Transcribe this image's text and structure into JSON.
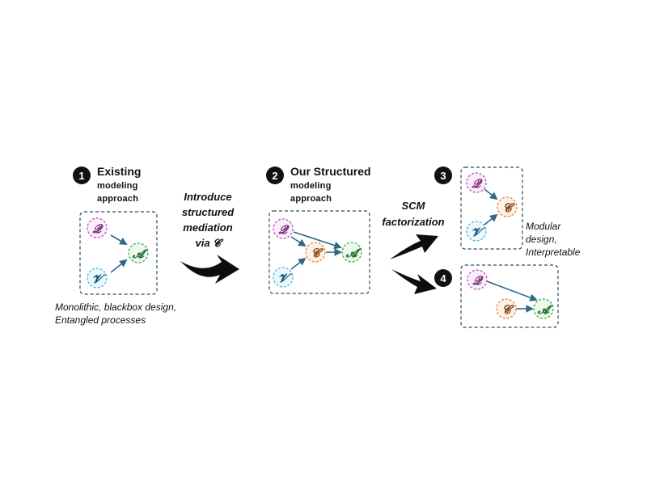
{
  "steps": [
    {
      "number": "1",
      "title_lines": [
        "Existing",
        "modeling",
        "approach"
      ]
    },
    {
      "number": "2",
      "title_lines": [
        "Our Structured",
        "modeling",
        "approach"
      ]
    },
    {
      "number": "3"
    },
    {
      "number": "4"
    }
  ],
  "transition_1_lines": [
    "Introduce",
    "structured",
    "mediation",
    "via 𝓒"
  ],
  "transition_2_lines": [
    "SCM",
    "factorization"
  ],
  "nodes": {
    "q": "𝓠",
    "v": "𝓥",
    "c": "𝓒",
    "a": "𝓐"
  },
  "captions": {
    "panel1": [
      "Monolithic, blackbox design,",
      "Entangled processes"
    ],
    "panel3": [
      "Modular",
      "design,",
      "Interpretable"
    ]
  },
  "colors": {
    "q_border": "#c24fbf",
    "q_fill": "#fbeefb",
    "v_border": "#49b7e3",
    "v_fill": "#ecf8fd",
    "c_border": "#e8843b",
    "c_fill": "#fdf1e8",
    "a_border": "#3fae4c",
    "a_fill": "#edf8ee",
    "edge": "#2d6886",
    "box_border": "#2d4a5e"
  }
}
